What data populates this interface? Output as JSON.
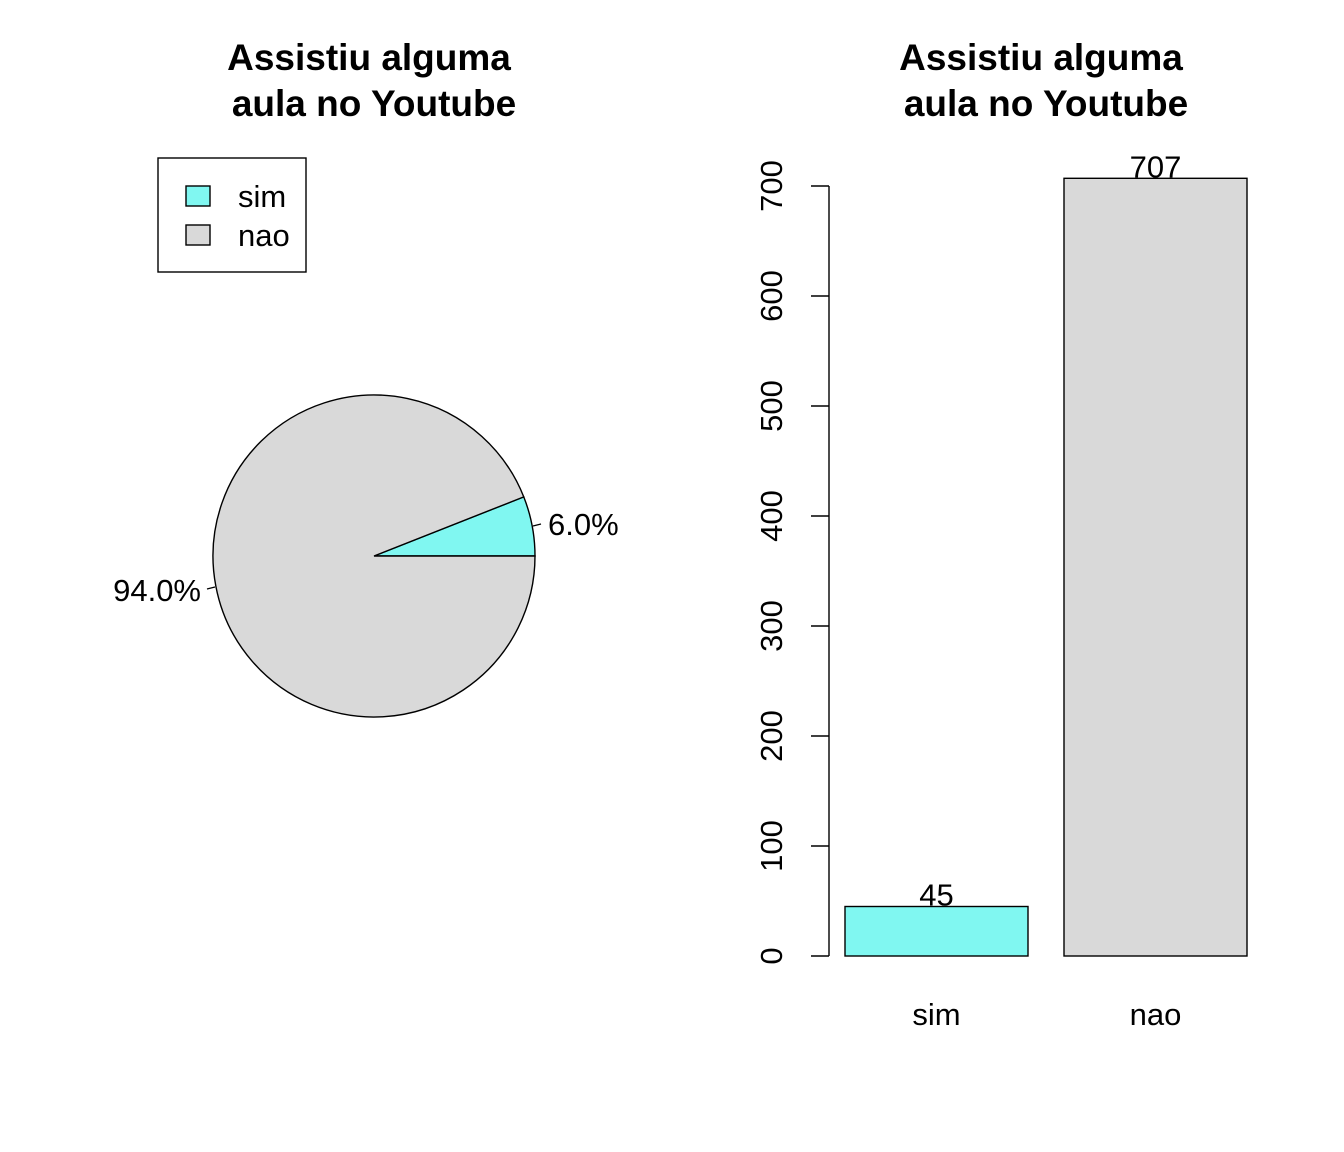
{
  "chart_data": [
    {
      "type": "pie",
      "title": [
        "Assistiu alguma",
        "aula no Youtube"
      ],
      "categories": [
        "sim",
        "nao"
      ],
      "values": [
        45,
        707
      ],
      "percent_labels": [
        "6.0%",
        "94.0%"
      ],
      "colors": [
        "#80F7F1",
        "#D9D9D9"
      ],
      "legend": {
        "position": "top-left",
        "entries": [
          "sim",
          "nao"
        ]
      }
    },
    {
      "type": "bar",
      "title": [
        "Assistiu alguma",
        "aula no Youtube"
      ],
      "categories": [
        "sim",
        "nao"
      ],
      "values": [
        45,
        707
      ],
      "data_labels": [
        "45",
        "707"
      ],
      "colors": [
        "#80F7F1",
        "#D9D9D9"
      ],
      "xlabel": "",
      "ylabel": "",
      "ylim": [
        0,
        700
      ],
      "yticks": [
        "0",
        "100",
        "200",
        "300",
        "400",
        "500",
        "600",
        "700"
      ],
      "grid": false
    }
  ]
}
